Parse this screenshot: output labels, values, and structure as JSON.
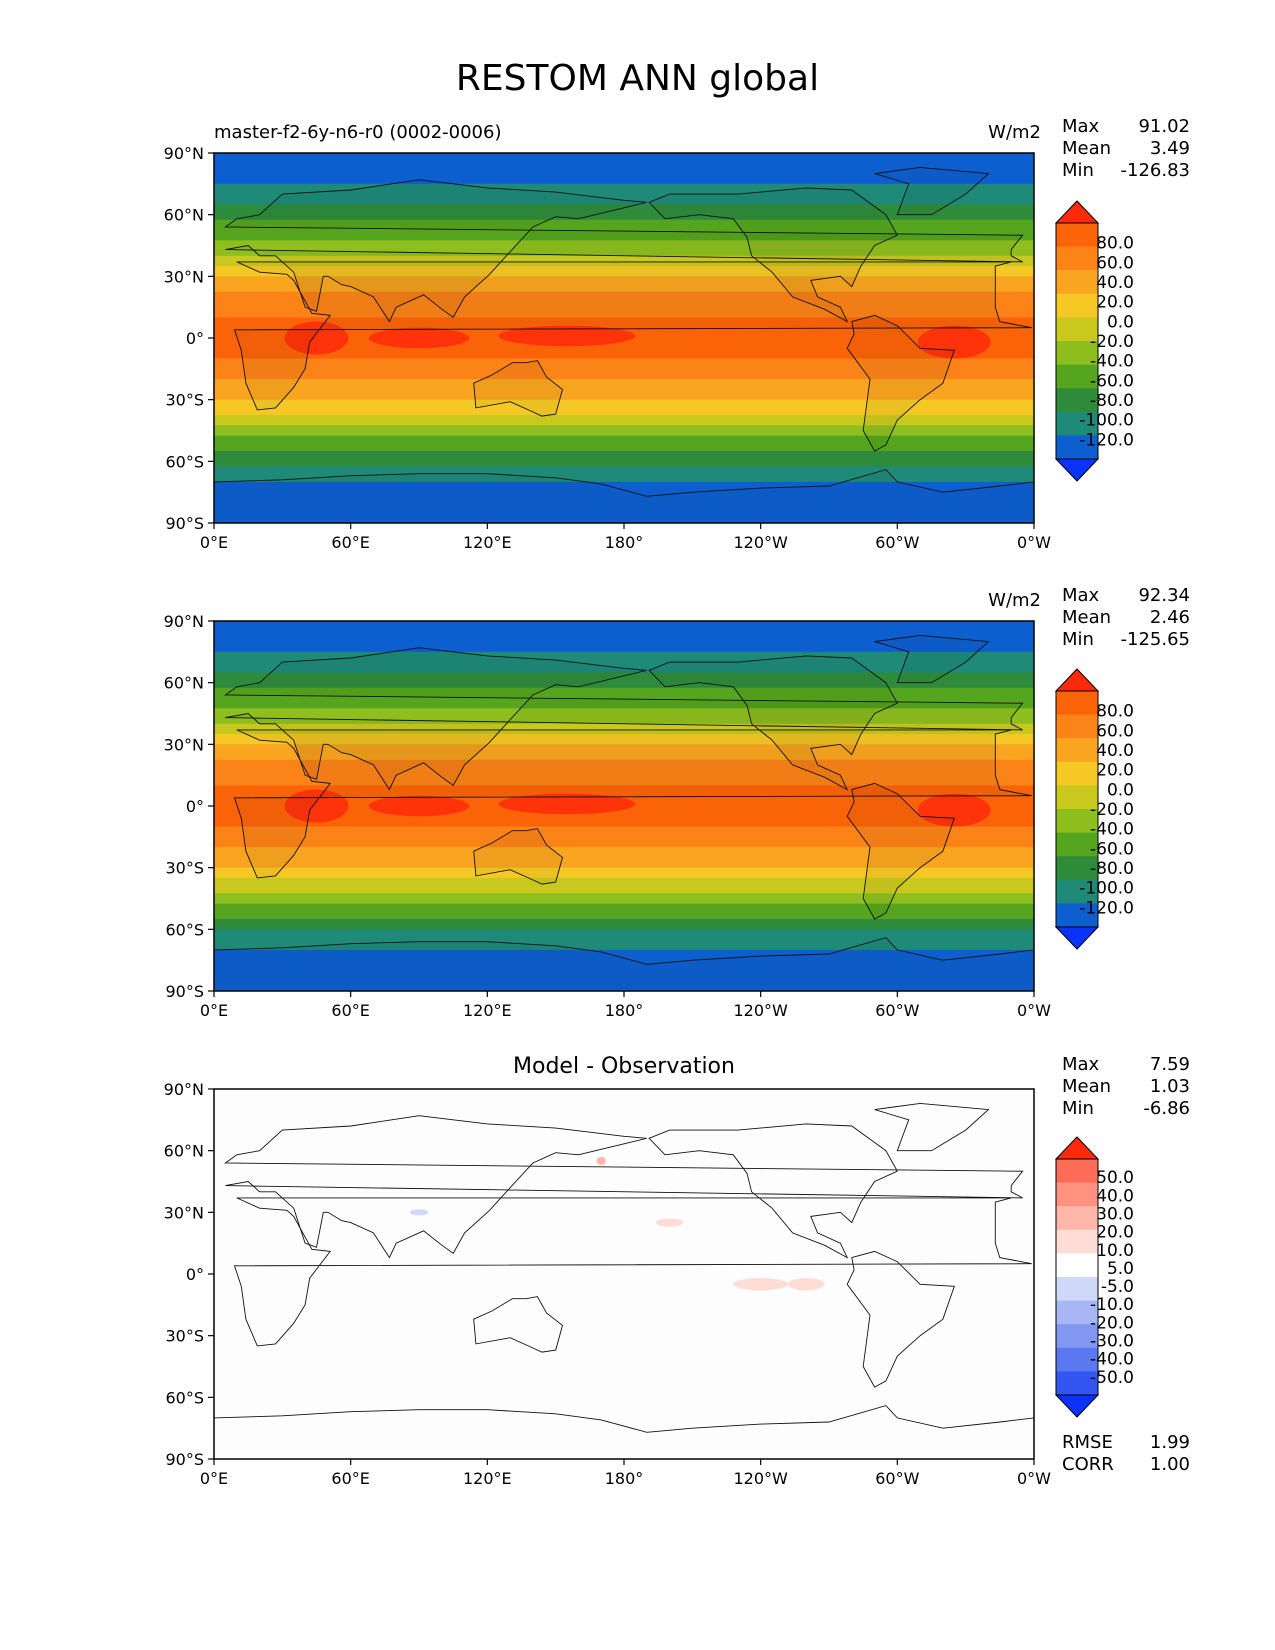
{
  "figure": {
    "title": "RESTOM ANN global"
  },
  "axes": {
    "lat_ticks": [
      "90°N",
      "60°N",
      "30°N",
      "0°",
      "30°S",
      "60°S",
      "90°S"
    ],
    "lon_ticks": [
      "0°E",
      "60°E",
      "120°E",
      "180°",
      "120°W",
      "60°W",
      "0°W"
    ]
  },
  "colors": {
    "abs_levels": [
      "#0a33ff",
      "#0d5fcf",
      "#1f8a78",
      "#2e8b3c",
      "#55a51e",
      "#8ebf1f",
      "#c9c81e",
      "#f5c825",
      "#f9a520",
      "#fb8317",
      "#fb6309",
      "#ff2a0a"
    ],
    "diff_levels": [
      "#0a33ff",
      "#3355f2",
      "#5a79f0",
      "#8197f2",
      "#a8b6f5",
      "#d0d8fa",
      "#ffffff",
      "#ffdcd6",
      "#feb7a8",
      "#fe9280",
      "#fd6c57",
      "#ff2a0a"
    ]
  },
  "panels": [
    {
      "subtitle_left": "master-f2-6y-n6-r0 (0002-0006)",
      "subtitle_center": "",
      "units": "W/m2",
      "stats": {
        "max_label": "Max",
        "max": "91.02",
        "mean_label": "Mean",
        "mean": "3.49",
        "min_label": "Min",
        "min": "-126.83"
      },
      "colorbar_ticks": [
        "80.0",
        "60.0",
        "40.0",
        "20.0",
        "0.0",
        "-20.0",
        "-40.0",
        "-60.0",
        "-80.0",
        "-100.0",
        "-120.0"
      ]
    },
    {
      "subtitle_left": "",
      "subtitle_center": "",
      "units": "W/m2",
      "stats": {
        "max_label": "Max",
        "max": "92.34",
        "mean_label": "Mean",
        "mean": "2.46",
        "min_label": "Min",
        "min": "-125.65"
      },
      "colorbar_ticks": [
        "80.0",
        "60.0",
        "40.0",
        "20.0",
        "0.0",
        "-20.0",
        "-40.0",
        "-60.0",
        "-80.0",
        "-100.0",
        "-120.0"
      ]
    },
    {
      "subtitle_left": "",
      "subtitle_center": "Model - Observation",
      "units": "",
      "stats": {
        "max_label": "Max",
        "max": "7.59",
        "mean_label": "Mean",
        "mean": "1.03",
        "min_label": "Min",
        "min": "-6.86"
      },
      "colorbar_ticks": [
        "50.0",
        "40.0",
        "30.0",
        "20.0",
        "10.0",
        "5.0",
        "-5.0",
        "-10.0",
        "-20.0",
        "-30.0",
        "-40.0",
        "-50.0"
      ],
      "metrics": {
        "rmse_label": "RMSE",
        "rmse": "1.99",
        "corr_label": "CORR",
        "corr": "1.00"
      }
    }
  ],
  "chart_data": [
    {
      "type": "heatmap",
      "title": "RESTOM ANN global",
      "subtitle": "master-f2-6y-n6-r0 (0002-0006)",
      "units": "W/m2",
      "x_range": [
        0,
        360
      ],
      "y_range": [
        -90,
        90
      ],
      "zonal_mean_profile": {
        "lat": [
          90,
          80,
          70,
          60,
          50,
          40,
          30,
          20,
          10,
          0,
          -10,
          -20,
          -30,
          -40,
          -50,
          -60,
          -70,
          -80,
          -90
        ],
        "values": [
          -120,
          -110,
          -90,
          -65,
          -45,
          -20,
          20,
          45,
          60,
          65,
          60,
          40,
          20,
          -10,
          -45,
          -75,
          -100,
          -115,
          -110
        ]
      },
      "max": 91.02,
      "mean": 3.49,
      "min": -126.83
    },
    {
      "type": "heatmap",
      "units": "W/m2",
      "x_range": [
        0,
        360
      ],
      "y_range": [
        -90,
        90
      ],
      "zonal_mean_profile": {
        "lat": [
          90,
          80,
          70,
          60,
          50,
          40,
          30,
          20,
          10,
          0,
          -10,
          -20,
          -30,
          -40,
          -50,
          -60,
          -70,
          -80,
          -90
        ],
        "values": [
          -120,
          -110,
          -90,
          -65,
          -45,
          -20,
          20,
          45,
          60,
          66,
          62,
          40,
          18,
          -12,
          -48,
          -78,
          -102,
          -118,
          -112
        ]
      },
      "max": 92.34,
      "mean": 2.46,
      "min": -125.65
    },
    {
      "type": "heatmap",
      "title": "Model - Observation",
      "x_range": [
        0,
        360
      ],
      "y_range": [
        -90,
        90
      ],
      "zonal_mean_profile": {
        "lat": [
          90,
          60,
          30,
          0,
          -30,
          -60,
          -90
        ],
        "values": [
          0,
          0,
          1,
          1,
          2,
          0,
          0
        ]
      },
      "max": 7.59,
      "mean": 1.03,
      "min": -6.86,
      "rmse": 1.99,
      "corr": 1.0
    }
  ]
}
